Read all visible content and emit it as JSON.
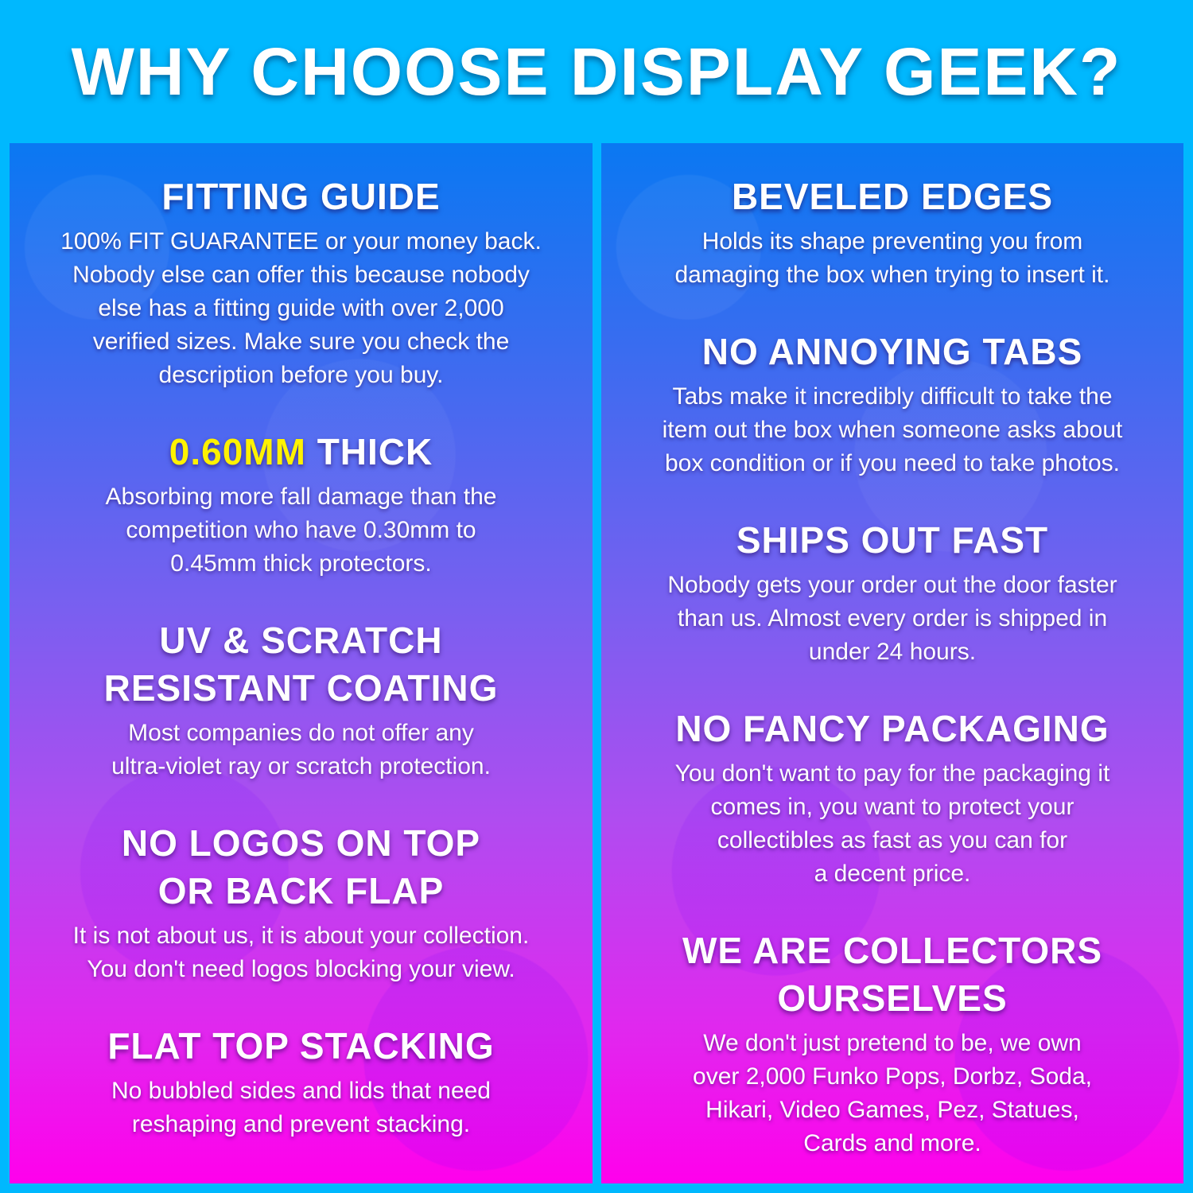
{
  "title": "WHY CHOOSE DISPLAY GEEK?",
  "colors": {
    "background": "#00b8fe",
    "panel_top": "#0a78f2",
    "panel_bottom": "#ff00ec",
    "highlight": "#fff200",
    "text": "#ffffff"
  },
  "columns": [
    {
      "sections": [
        {
          "heading": [
            {
              "highlight": "",
              "text": "FITTING GUIDE"
            }
          ],
          "body": [
            "100% FIT GUARANTEE or your money back.",
            "Nobody else can offer this because nobody",
            "else has a fitting guide with over 2,000",
            "verified sizes. Make sure you check the",
            "description before you buy."
          ]
        },
        {
          "heading": [
            {
              "highlight": "0.60MM",
              "text": " THICK"
            }
          ],
          "body": [
            "Absorbing more fall damage than the",
            "competition who have 0.30mm to",
            "0.45mm thick protectors."
          ]
        },
        {
          "heading": [
            {
              "highlight": "",
              "text": "UV & SCRATCH"
            },
            {
              "highlight": "",
              "text": "RESISTANT COATING"
            }
          ],
          "body": [
            "Most companies do not offer any",
            "ultra-violet ray or scratch protection."
          ]
        },
        {
          "heading": [
            {
              "highlight": "",
              "text": "NO LOGOS ON TOP"
            },
            {
              "highlight": "",
              "text": "OR BACK FLAP"
            }
          ],
          "body": [
            "It is not about us, it is about your collection.",
            "You don't need logos blocking your view."
          ]
        },
        {
          "heading": [
            {
              "highlight": "",
              "text": "FLAT TOP STACKING"
            }
          ],
          "body": [
            "No bubbled sides and lids that need",
            "reshaping and prevent stacking."
          ]
        }
      ]
    },
    {
      "sections": [
        {
          "heading": [
            {
              "highlight": "",
              "text": "BEVELED EDGES"
            }
          ],
          "body": [
            "Holds its shape preventing you from",
            "damaging the box when trying to insert it."
          ]
        },
        {
          "heading": [
            {
              "highlight": "",
              "text": "NO ANNOYING TABS"
            }
          ],
          "body": [
            "Tabs make it incredibly difficult to take the",
            "item out the box when someone asks about",
            "box condition or if you need to take photos."
          ]
        },
        {
          "heading": [
            {
              "highlight": "",
              "text": "SHIPS OUT FAST"
            }
          ],
          "body": [
            "Nobody gets your order out the door faster",
            "than us. Almost every order is shipped in",
            "under 24 hours."
          ]
        },
        {
          "heading": [
            {
              "highlight": "",
              "text": "NO FANCY PACKAGING"
            }
          ],
          "body": [
            "You don't want to pay for the packaging it",
            "comes in, you want to protect your",
            "collectibles as fast as you can for",
            "a decent price."
          ]
        },
        {
          "heading": [
            {
              "highlight": "",
              "text": "WE ARE COLLECTORS"
            },
            {
              "highlight": "",
              "text": "OURSELVES"
            }
          ],
          "body": [
            "We don't just pretend to be, we own",
            "over 2,000 Funko Pops, Dorbz, Soda,",
            "Hikari, Video Games, Pez, Statues,",
            "Cards and more."
          ]
        }
      ]
    }
  ]
}
